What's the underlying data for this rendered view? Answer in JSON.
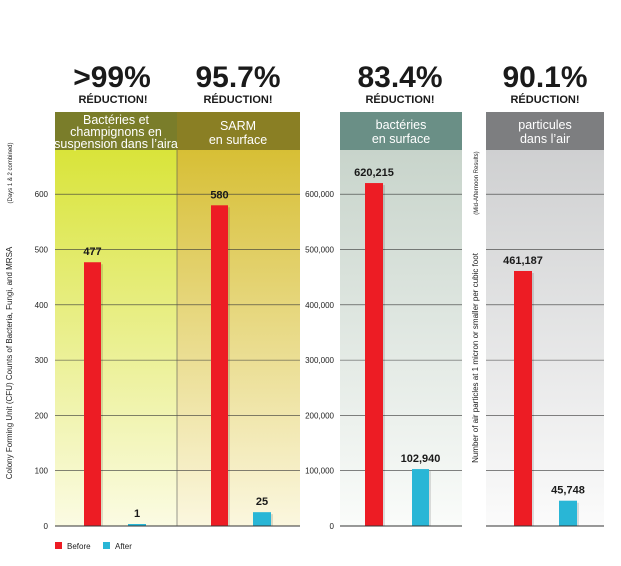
{
  "colors": {
    "before": "#ed1c24",
    "after": "#29b6d6",
    "header_green": "#7a7d2a",
    "header_teal": "#6a8f86",
    "header_gray": "#7d7e80"
  },
  "y_label_left": "Colony Forming Unit (CFU) Counts of Bacteria, Fungi, and MRSA",
  "y_label_left_note": "(Days 1 & 2 combined)",
  "y_label_right": "Number of air particles at 1 micron or smaller per cubic foot",
  "y_label_right_note": "(Mid-Afternoon Results)",
  "legend": {
    "before": "Before",
    "after": "After"
  },
  "chart_data": [
    {
      "type": "bar",
      "headline": ">99%",
      "reduction_label": "RÉDUCTION!",
      "header": [
        "Bactéries et",
        "champignons en",
        "suspension dans l’aira"
      ],
      "ylim": [
        0,
        680
      ],
      "ticks": [
        0,
        100,
        200,
        300,
        400,
        500,
        600
      ],
      "tick_labels": [
        "0",
        "100",
        "200",
        "300",
        "400",
        "500",
        "600"
      ],
      "series": [
        {
          "name": "Before",
          "values": [
            477
          ],
          "labels": [
            "477"
          ]
        },
        {
          "name": "After",
          "values": [
            1
          ],
          "labels": [
            "1"
          ]
        }
      ]
    },
    {
      "type": "bar",
      "headline": "95.7%",
      "reduction_label": "RÉDUCTION!",
      "header": [
        "SARM",
        "en surface"
      ],
      "ylim": [
        0,
        680
      ],
      "ticks": [
        0,
        100,
        200,
        300,
        400,
        500,
        600
      ],
      "series": [
        {
          "name": "Before",
          "values": [
            580
          ],
          "labels": [
            "580"
          ]
        },
        {
          "name": "After",
          "values": [
            25
          ],
          "labels": [
            "25"
          ]
        }
      ]
    },
    {
      "type": "bar",
      "headline": "83.4%",
      "reduction_label": "RÉDUCTION!",
      "header": [
        "bactéries",
        "en surface"
      ],
      "ylim": [
        0,
        680000
      ],
      "ticks": [
        0,
        100000,
        200000,
        300000,
        400000,
        500000,
        600000
      ],
      "tick_labels": [
        "0",
        "100,000",
        "200,000",
        "300,000",
        "400,000",
        "500,000",
        "600,000"
      ],
      "series": [
        {
          "name": "Before",
          "values": [
            620215
          ],
          "labels": [
            "620,215"
          ]
        },
        {
          "name": "After",
          "values": [
            102940
          ],
          "labels": [
            "102,940"
          ]
        }
      ]
    },
    {
      "type": "bar",
      "headline": "90.1%",
      "reduction_label": "RÉDUCTION!",
      "header": [
        "particules",
        "dans l’air"
      ],
      "ylim": [
        0,
        680000
      ],
      "ticks": [
        0,
        100000,
        200000,
        300000,
        400000,
        500000,
        600000
      ],
      "series": [
        {
          "name": "Before",
          "values": [
            461187
          ],
          "labels": [
            "461,187"
          ]
        },
        {
          "name": "After",
          "values": [
            45748
          ],
          "labels": [
            "45,748"
          ]
        }
      ]
    }
  ]
}
